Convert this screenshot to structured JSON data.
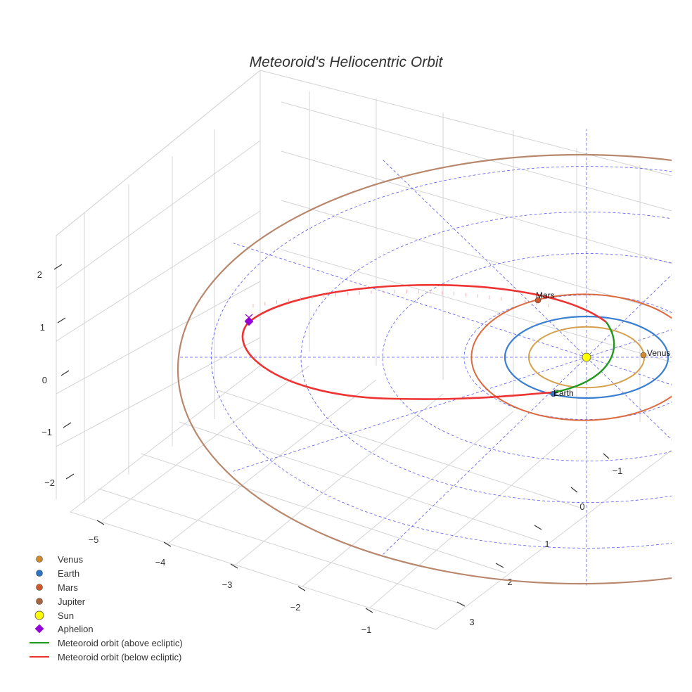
{
  "chart_data": {
    "type": "line",
    "title": "Meteoroid's Heliocentric Orbit",
    "axes": {
      "x_ticks": [
        "−5",
        "−4",
        "−3",
        "−2",
        "−1"
      ],
      "y_ticks": [
        "−1",
        "0",
        "1",
        "2",
        "3"
      ],
      "z_ticks": [
        "2",
        "1",
        "0",
        "−1",
        "−2"
      ],
      "grid": true
    },
    "legend": {
      "placement": "bottom-left",
      "entries": [
        {
          "label": "Venus",
          "marker": "circle",
          "color": "#d08a2e"
        },
        {
          "label": "Earth",
          "marker": "circle",
          "color": "#2b73c4"
        },
        {
          "label": "Mars",
          "marker": "circle",
          "color": "#d0582a"
        },
        {
          "label": "Jupiter",
          "marker": "circle",
          "color": "#a8643c"
        },
        {
          "label": "Sun",
          "marker": "circle-large",
          "color": "#ffff00"
        },
        {
          "label": "Aphelion",
          "marker": "diamond",
          "color": "#9400d3"
        },
        {
          "label": "Meteoroid orbit (above ecliptic)",
          "marker": "line",
          "color": "#1f9a1f"
        },
        {
          "label": "Meteoroid orbit (below ecliptic)",
          "marker": "line",
          "color": "#ee3333"
        }
      ]
    },
    "planet_labels": [
      "Mars",
      "Venus",
      "Earth"
    ],
    "orbits_au": {
      "Venus": 0.72,
      "Earth": 1.0,
      "Mars": 1.52,
      "Jupiter": 5.2
    },
    "meteoroid": {
      "aphelion_au": 5.0,
      "perihelion_au": 0.75
    },
    "colors": {
      "venus_orbit": "#d4a04c",
      "earth_orbit": "#3a7fd0",
      "mars_orbit": "#db6b40",
      "jupiter_orbit": "#b8876c",
      "ecliptic_grid": "#5b5bf0",
      "box_grid": "#cccccc"
    }
  }
}
